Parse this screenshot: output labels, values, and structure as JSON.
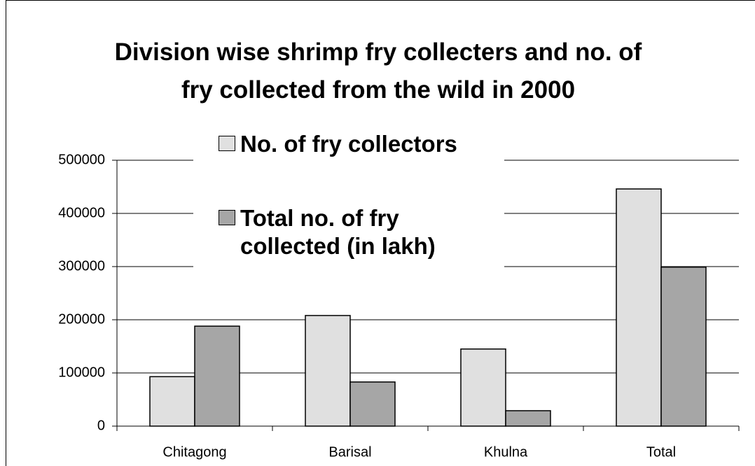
{
  "chart_data": {
    "type": "bar",
    "title": "Division wise shrimp fry collecters and no. of fry collected from the wild in 2000",
    "categories": [
      "Chitagong",
      "Barisal",
      "Khulna",
      "Total"
    ],
    "series": [
      {
        "name": "No. of fry collectors",
        "color": "#e0e0e0",
        "values": [
          93000,
          208000,
          145000,
          446000
        ]
      },
      {
        "name": "Total no. of fry collected (in lakh)",
        "color": "#a6a6a6",
        "values": [
          188000,
          83000,
          29000,
          299000
        ]
      }
    ],
    "ylim": [
      0,
      500000
    ],
    "yticks": [
      0,
      100000,
      200000,
      300000,
      400000,
      500000
    ],
    "grid": true
  }
}
